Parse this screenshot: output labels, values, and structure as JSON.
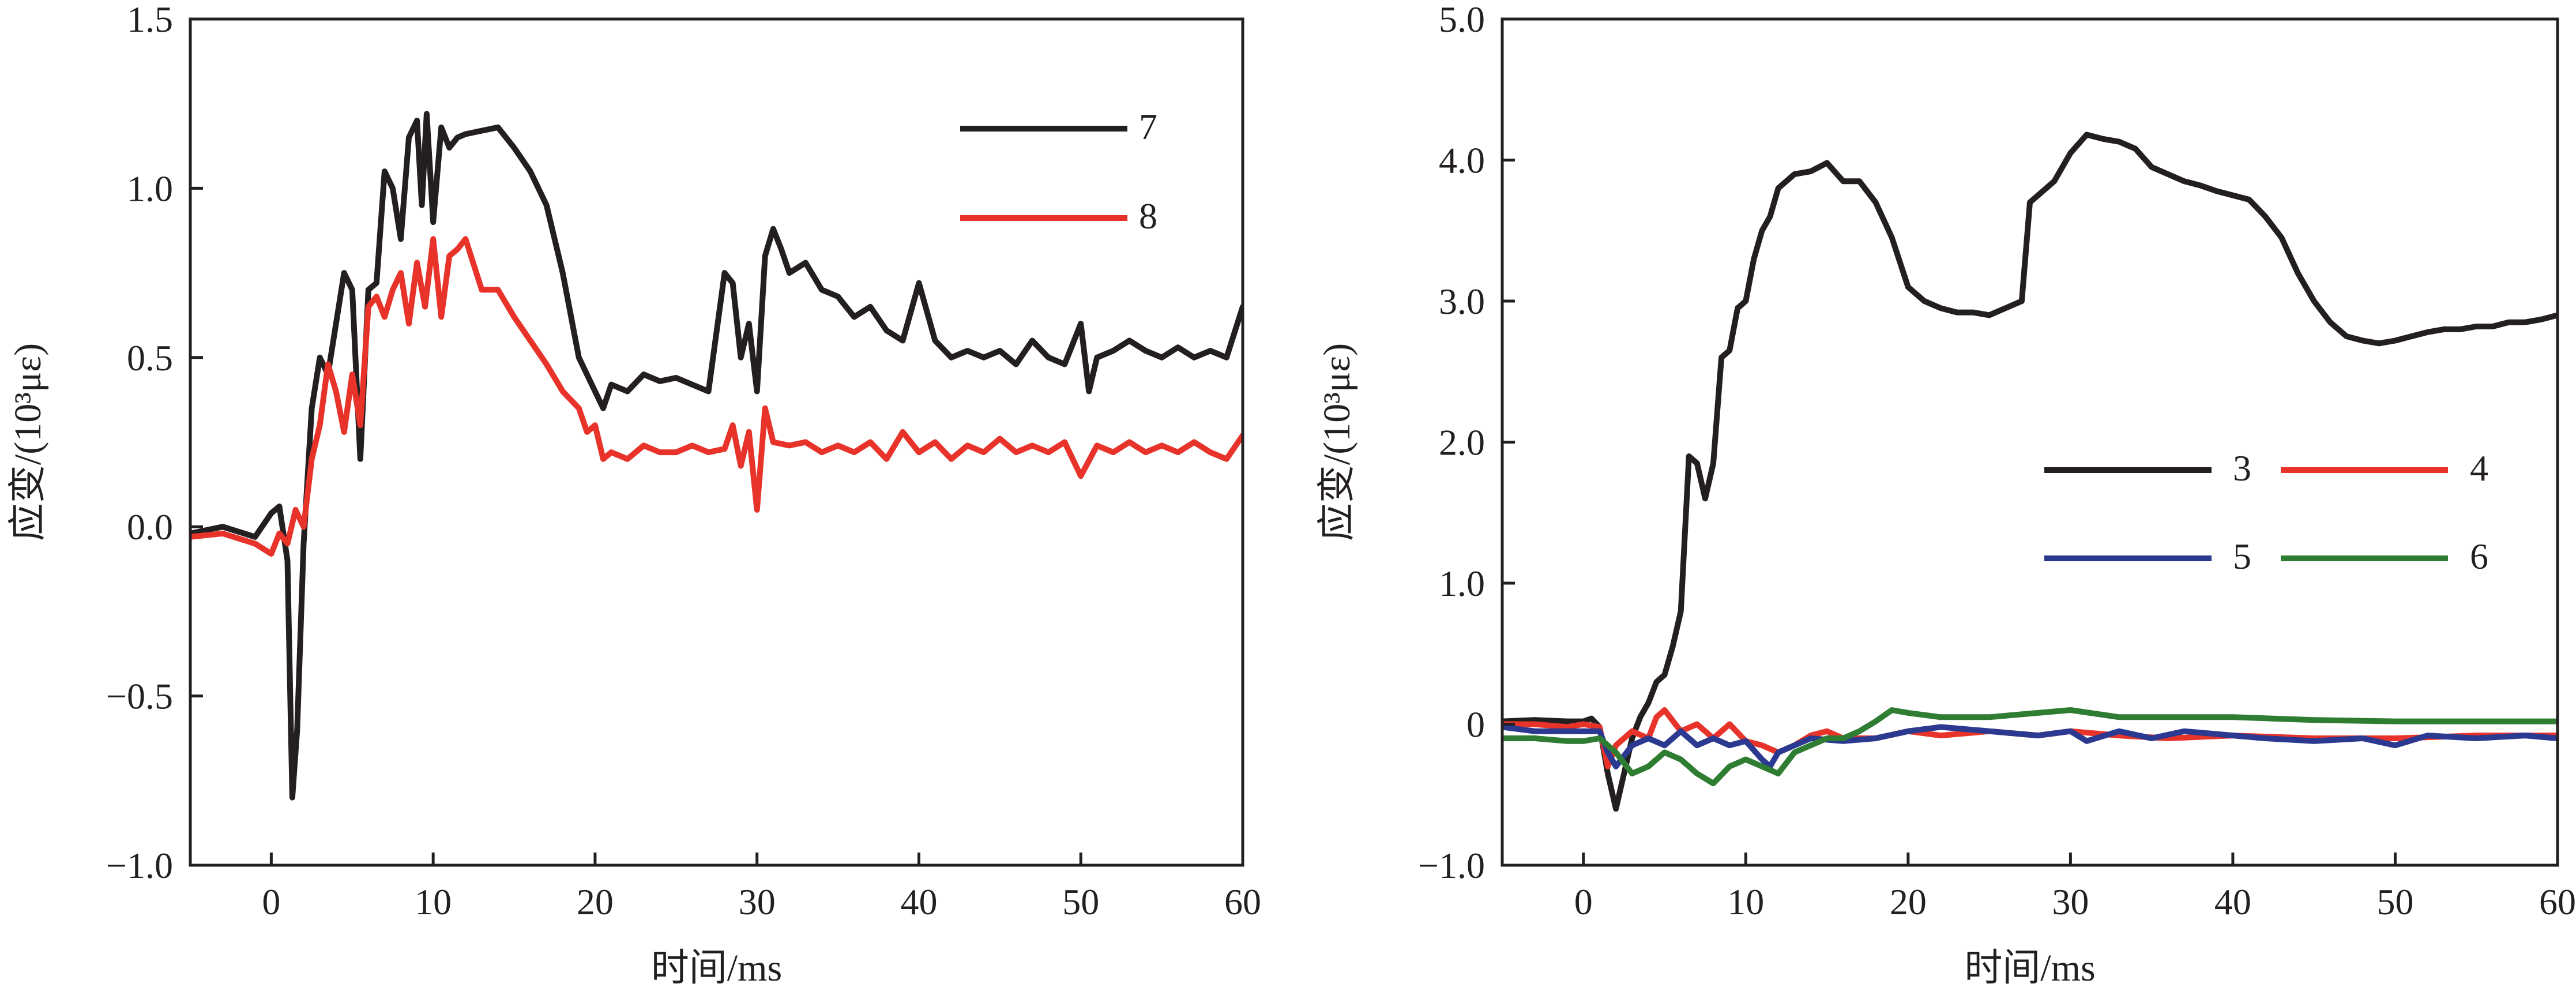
{
  "chart_data": [
    {
      "type": "line",
      "title": "",
      "xlabel": "时间/ms",
      "ylabel": "应变/(10³με)",
      "xlim": [
        -5,
        60
      ],
      "ylim": [
        -1.0,
        1.5
      ],
      "xticks": [
        0,
        10,
        20,
        30,
        40,
        50,
        60
      ],
      "xtick_labels": [
        "0",
        "10",
        "20",
        "30",
        "40",
        "50",
        "60"
      ],
      "yticks": [
        -1.0,
        -0.5,
        0.0,
        0.5,
        1.0,
        1.5
      ],
      "ytick_labels": [
        "−1.0",
        "−0.5",
        "0.0",
        "0.5",
        "1.0",
        "1.5"
      ],
      "grid": false,
      "legend_position": "top-right",
      "series": [
        {
          "name": "7",
          "color": "#231f20",
          "x": [
            -5,
            -3,
            -1,
            0,
            0.5,
            1,
            1.3,
            1.6,
            2,
            2.5,
            3,
            3.5,
            4,
            4.5,
            5,
            5.5,
            6,
            6.5,
            7,
            7.5,
            8,
            8.5,
            9,
            9.3,
            9.6,
            10,
            10.5,
            11,
            11.5,
            12,
            13,
            14,
            15,
            16,
            17,
            18,
            19,
            20,
            20.5,
            21,
            22,
            23,
            24,
            25,
            26,
            27,
            28,
            28.5,
            29,
            29.5,
            30,
            30.5,
            31,
            31.5,
            32,
            33,
            34,
            35,
            36,
            37,
            38,
            39,
            40,
            41,
            42,
            43,
            44,
            45,
            46,
            47,
            48,
            49,
            50,
            50.5,
            51,
            52,
            53,
            54,
            55,
            56,
            57,
            58,
            59,
            60
          ],
          "y": [
            -0.02,
            0.0,
            -0.03,
            0.04,
            0.06,
            -0.1,
            -0.8,
            -0.6,
            -0.05,
            0.35,
            0.5,
            0.45,
            0.6,
            0.75,
            0.7,
            0.2,
            0.7,
            0.72,
            1.05,
            1.0,
            0.85,
            1.15,
            1.2,
            0.95,
            1.22,
            0.9,
            1.18,
            1.12,
            1.15,
            1.16,
            1.17,
            1.18,
            1.12,
            1.05,
            0.95,
            0.75,
            0.5,
            0.4,
            0.35,
            0.42,
            0.4,
            0.45,
            0.43,
            0.44,
            0.42,
            0.4,
            0.75,
            0.72,
            0.5,
            0.6,
            0.4,
            0.8,
            0.88,
            0.82,
            0.75,
            0.78,
            0.7,
            0.68,
            0.62,
            0.65,
            0.58,
            0.55,
            0.72,
            0.55,
            0.5,
            0.52,
            0.5,
            0.52,
            0.48,
            0.55,
            0.5,
            0.48,
            0.6,
            0.4,
            0.5,
            0.52,
            0.55,
            0.52,
            0.5,
            0.53,
            0.5,
            0.52,
            0.5,
            0.65
          ]
        },
        {
          "name": "8",
          "color": "#e8332a",
          "x": [
            -5,
            -3,
            -1,
            0,
            0.5,
            1,
            1.5,
            2,
            2.5,
            3,
            3.5,
            4,
            4.5,
            5,
            5.5,
            6,
            6.5,
            7,
            7.5,
            8,
            8.5,
            9,
            9.5,
            10,
            10.5,
            11,
            11.5,
            12,
            13,
            14,
            15,
            16,
            17,
            18,
            19,
            19.5,
            20,
            20.5,
            21,
            22,
            23,
            24,
            25,
            26,
            27,
            28,
            28.5,
            29,
            29.5,
            30,
            30.5,
            31,
            32,
            33,
            34,
            35,
            36,
            37,
            38,
            39,
            40,
            41,
            42,
            43,
            44,
            45,
            46,
            47,
            48,
            49,
            50,
            51,
            52,
            53,
            54,
            55,
            56,
            57,
            58,
            59,
            60
          ],
          "y": [
            -0.03,
            -0.02,
            -0.05,
            -0.08,
            -0.02,
            -0.05,
            0.05,
            0.0,
            0.2,
            0.3,
            0.48,
            0.4,
            0.28,
            0.45,
            0.3,
            0.65,
            0.68,
            0.62,
            0.7,
            0.75,
            0.6,
            0.78,
            0.65,
            0.85,
            0.62,
            0.8,
            0.82,
            0.85,
            0.7,
            0.7,
            0.62,
            0.55,
            0.48,
            0.4,
            0.35,
            0.28,
            0.3,
            0.2,
            0.22,
            0.2,
            0.24,
            0.22,
            0.22,
            0.24,
            0.22,
            0.23,
            0.3,
            0.18,
            0.28,
            0.05,
            0.35,
            0.25,
            0.24,
            0.25,
            0.22,
            0.24,
            0.22,
            0.25,
            0.2,
            0.28,
            0.22,
            0.25,
            0.2,
            0.24,
            0.22,
            0.26,
            0.22,
            0.24,
            0.22,
            0.25,
            0.15,
            0.24,
            0.22,
            0.25,
            0.22,
            0.24,
            0.22,
            0.25,
            0.22,
            0.2,
            0.27
          ]
        }
      ]
    },
    {
      "type": "line",
      "title": "",
      "xlabel": "时间/ms",
      "ylabel": "应变/(10³με)",
      "xlim": [
        -5,
        60
      ],
      "ylim": [
        -1.0,
        5.0
      ],
      "xticks": [
        0,
        10,
        20,
        30,
        40,
        50,
        60
      ],
      "xtick_labels": [
        "0",
        "10",
        "20",
        "30",
        "40",
        "50",
        "60"
      ],
      "yticks": [
        -1.0,
        0,
        1.0,
        2.0,
        3.0,
        4.0,
        5.0
      ],
      "ytick_labels": [
        "−1.0",
        "0",
        "1.0",
        "2.0",
        "3.0",
        "4.0",
        "5.0"
      ],
      "grid": false,
      "legend_position": "center-right",
      "series": [
        {
          "name": "3",
          "color": "#231f20",
          "x": [
            -5,
            -3,
            -1,
            0,
            0.5,
            1,
            1.5,
            2,
            2.5,
            3,
            3.5,
            4,
            4.5,
            5,
            5.5,
            6,
            6.5,
            7,
            7.5,
            8,
            8.5,
            9,
            9.5,
            10,
            10.5,
            11,
            11.5,
            12,
            13,
            14,
            15,
            16,
            17,
            18,
            19,
            20,
            21,
            22,
            23,
            24,
            25,
            26,
            27,
            27.5,
            28,
            29,
            30,
            31,
            32,
            33,
            34,
            35,
            36,
            37,
            38,
            39,
            40,
            41,
            42,
            43,
            44,
            45,
            46,
            47,
            48,
            49,
            50,
            51,
            52,
            53,
            54,
            55,
            56,
            57,
            58,
            59,
            60
          ],
          "y": [
            0.02,
            0.03,
            0.02,
            0.02,
            0.04,
            -0.02,
            -0.35,
            -0.6,
            -0.35,
            -0.1,
            0.05,
            0.15,
            0.3,
            0.35,
            0.55,
            0.8,
            1.9,
            1.85,
            1.6,
            1.85,
            2.6,
            2.65,
            2.95,
            3.0,
            3.3,
            3.5,
            3.6,
            3.8,
            3.9,
            3.92,
            3.98,
            3.85,
            3.85,
            3.7,
            3.45,
            3.1,
            3.0,
            2.95,
            2.92,
            2.92,
            2.9,
            2.95,
            3.0,
            3.7,
            3.75,
            3.85,
            4.05,
            4.18,
            4.15,
            4.13,
            4.08,
            3.95,
            3.9,
            3.85,
            3.82,
            3.78,
            3.75,
            3.72,
            3.6,
            3.45,
            3.2,
            3.0,
            2.85,
            2.75,
            2.72,
            2.7,
            2.72,
            2.75,
            2.78,
            2.8,
            2.8,
            2.82,
            2.82,
            2.85,
            2.85,
            2.87,
            2.9
          ]
        },
        {
          "name": "4",
          "color": "#e8332a",
          "x": [
            -5,
            -3,
            -1,
            0,
            1,
            1.5,
            2,
            3,
            4,
            4.5,
            5,
            6,
            7,
            8,
            9,
            10,
            11,
            12,
            13,
            14,
            15,
            16,
            18,
            20,
            22,
            25,
            28,
            30,
            33,
            36,
            40,
            45,
            50,
            55,
            60
          ],
          "y": [
            0.0,
            0.0,
            -0.02,
            0.0,
            -0.02,
            -0.3,
            -0.15,
            -0.05,
            -0.1,
            0.05,
            0.1,
            -0.05,
            0.0,
            -0.1,
            0.0,
            -0.12,
            -0.15,
            -0.2,
            -0.15,
            -0.08,
            -0.05,
            -0.1,
            -0.1,
            -0.05,
            -0.08,
            -0.05,
            -0.08,
            -0.05,
            -0.08,
            -0.1,
            -0.08,
            -0.1,
            -0.1,
            -0.08,
            -0.08
          ]
        },
        {
          "name": "5",
          "color": "#2b3990",
          "x": [
            -5,
            -3,
            -1,
            0,
            1,
            1.5,
            2,
            3,
            4,
            5,
            6,
            7,
            8,
            9,
            10,
            11,
            11.5,
            12,
            13,
            14,
            16,
            18,
            20,
            22,
            25,
            28,
            30,
            31,
            33,
            35,
            37,
            40,
            42,
            45,
            48,
            50,
            52,
            55,
            58,
            60
          ],
          "y": [
            -0.02,
            -0.05,
            -0.05,
            -0.05,
            -0.05,
            -0.2,
            -0.3,
            -0.15,
            -0.1,
            -0.15,
            -0.05,
            -0.15,
            -0.1,
            -0.15,
            -0.12,
            -0.25,
            -0.3,
            -0.2,
            -0.15,
            -0.1,
            -0.12,
            -0.1,
            -0.05,
            -0.02,
            -0.05,
            -0.08,
            -0.05,
            -0.12,
            -0.05,
            -0.1,
            -0.05,
            -0.08,
            -0.1,
            -0.12,
            -0.1,
            -0.15,
            -0.08,
            -0.1,
            -0.08,
            -0.1
          ]
        },
        {
          "name": "6",
          "color": "#2e7d32",
          "x": [
            -5,
            -3,
            -1,
            0,
            1,
            1.5,
            2,
            3,
            4,
            5,
            6,
            7,
            8,
            9,
            10,
            11,
            12,
            13,
            14,
            15,
            16,
            17,
            18,
            19,
            20,
            22,
            25,
            28,
            30,
            33,
            36,
            40,
            45,
            50,
            55,
            60
          ],
          "y": [
            -0.1,
            -0.1,
            -0.12,
            -0.12,
            -0.1,
            -0.15,
            -0.2,
            -0.35,
            -0.3,
            -0.2,
            -0.25,
            -0.35,
            -0.42,
            -0.3,
            -0.25,
            -0.3,
            -0.35,
            -0.2,
            -0.15,
            -0.1,
            -0.1,
            -0.05,
            0.02,
            0.1,
            0.08,
            0.05,
            0.05,
            0.08,
            0.1,
            0.05,
            0.05,
            0.05,
            0.03,
            0.02,
            0.02,
            0.02
          ]
        }
      ]
    }
  ]
}
